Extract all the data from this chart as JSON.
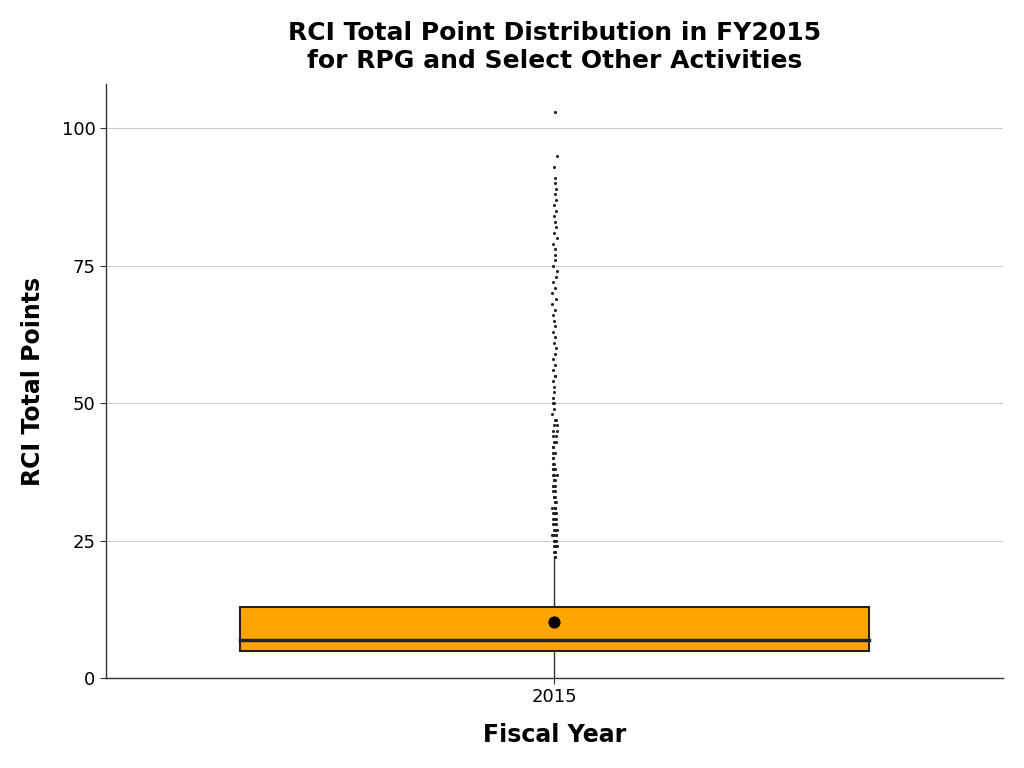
{
  "title": "RCI Total Point Distribution in FY2015\nfor RPG and Select Other Activities",
  "xlabel": "Fiscal Year",
  "ylabel": "RCI Total Points",
  "xtick_labels": [
    "2015"
  ],
  "ylim": [
    0,
    108
  ],
  "yticks": [
    0,
    25,
    50,
    75,
    100
  ],
  "box_color": "#FFA500",
  "box_edge_color": "#222222",
  "median": 7,
  "mean": 10.26,
  "q1": 5,
  "q3": 13,
  "whisker_low": 0,
  "whisker_high": 22,
  "outlier_values": [
    22,
    22,
    23,
    23,
    23,
    24,
    24,
    24,
    24,
    25,
    25,
    25,
    25,
    25,
    26,
    26,
    26,
    26,
    26,
    27,
    27,
    27,
    27,
    28,
    28,
    28,
    29,
    29,
    29,
    30,
    30,
    30,
    30,
    31,
    31,
    31,
    31,
    32,
    32,
    32,
    33,
    33,
    33,
    34,
    34,
    35,
    35,
    35,
    36,
    36,
    36,
    37,
    37,
    37,
    38,
    38,
    38,
    39,
    39,
    40,
    40,
    41,
    41,
    42,
    42,
    43,
    43,
    44,
    44,
    45,
    45,
    46,
    46,
    47,
    47,
    48,
    49,
    50,
    50,
    51,
    52,
    53,
    54,
    55,
    55,
    56,
    57,
    58,
    59,
    60,
    61,
    62,
    63,
    64,
    65,
    66,
    67,
    68,
    69,
    70,
    71,
    72,
    73,
    74,
    75,
    76,
    77,
    78,
    79,
    80,
    81,
    82,
    83,
    84,
    85,
    86,
    87,
    88,
    89,
    90,
    91,
    93,
    95,
    103
  ],
  "background_color": "#ffffff",
  "grid_color": "#cccccc",
  "title_fontsize": 18,
  "axis_label_fontsize": 17,
  "tick_fontsize": 13
}
